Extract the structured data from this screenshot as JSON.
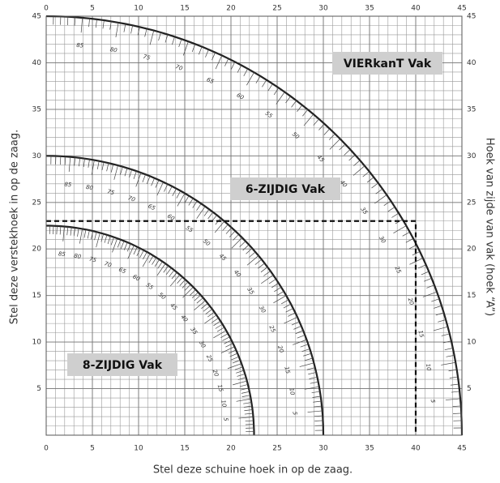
{
  "chart_data": {
    "type": "arc",
    "xlabel": "Stel deze schuine hoek in op de zaag.",
    "ylabel": "Stel deze verstekhoek in op de zaag.",
    "y2label": "Hoek van zijde van vak (hoek “A”)",
    "xlim": [
      0,
      45
    ],
    "ylim": [
      0,
      45
    ],
    "xticks": [
      0,
      5,
      10,
      15,
      20,
      25,
      30,
      35,
      40,
      45
    ],
    "yticks": [
      5,
      10,
      15,
      20,
      25,
      30,
      35,
      40,
      45
    ],
    "grid": true,
    "scale_labels": [
      5,
      10,
      15,
      20,
      25,
      30,
      35,
      40,
      45,
      50,
      55,
      60,
      65,
      70,
      75,
      80,
      85
    ],
    "series": [
      {
        "name": "VIERkanT Vak",
        "radius": 45,
        "color": "#222222"
      },
      {
        "name": "6-ZIJDIG Vak",
        "radius": 30,
        "color": "#222222"
      },
      {
        "name": "8-ZIJDIG Vak",
        "radius": 22.5,
        "color": "#222222"
      }
    ],
    "reference_point": {
      "x": 40,
      "y": 23
    }
  }
}
